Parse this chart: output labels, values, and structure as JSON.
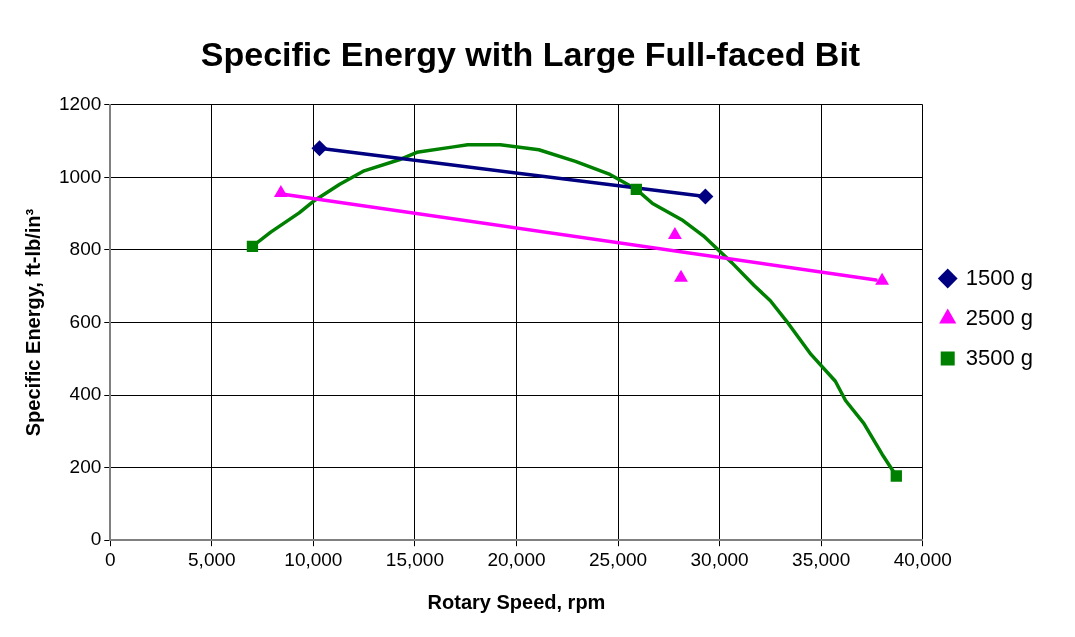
{
  "chart_data": {
    "type": "scatter",
    "title": "Specific Energy with Large Full-faced Bit",
    "xlabel": "Rotary Speed, rpm",
    "ylabel": "Specific Energy, ft-lb/in³",
    "xlim": [
      0,
      40000
    ],
    "xticks": [
      {
        "value": 0,
        "label": "0"
      },
      {
        "value": 5000,
        "label": "5,000"
      },
      {
        "value": 10000,
        "label": "10,000"
      },
      {
        "value": 15000,
        "label": "15,000"
      },
      {
        "value": 20000,
        "label": "20,000"
      },
      {
        "value": 25000,
        "label": "25,000"
      },
      {
        "value": 30000,
        "label": "30,000"
      },
      {
        "value": 35000,
        "label": "35,000"
      },
      {
        "value": 40000,
        "label": "40,000"
      }
    ],
    "ylim": [
      0,
      1200
    ],
    "yticks": [
      0,
      200,
      400,
      600,
      800,
      1000,
      1200
    ],
    "grid": true,
    "legend": "right",
    "series": [
      {
        "name": "1500 g",
        "type": "scatter",
        "marker": "diamond",
        "color": "#000080",
        "x": [
          10300,
          29300
        ],
        "values": [
          1080,
          947
        ]
      },
      {
        "name": "2500 g",
        "type": "scatter",
        "marker": "triangle",
        "color": "#ff00ff",
        "x": [
          8400,
          27800,
          28100,
          38000
        ],
        "values": [
          957,
          841,
          723,
          715
        ]
      },
      {
        "name": "3500 g",
        "type": "scatter",
        "marker": "square",
        "color": "#008000",
        "x": [
          7000,
          25900,
          38700
        ],
        "values": [
          810,
          967,
          177
        ]
      },
      {
        "type": "line",
        "marker": "none",
        "color": "#000080",
        "x": [
          10300,
          29300
        ],
        "values": [
          1080,
          947
        ]
      },
      {
        "type": "line",
        "marker": "none",
        "color": "#ff00ff",
        "x": [
          8600,
          37700
        ],
        "values": [
          953,
          717
        ]
      },
      {
        "type": "line",
        "marker": "none",
        "color": "#008000",
        "x": [
          7000,
          7900,
          9300,
          10000,
          11300,
          12500,
          14300,
          15100,
          16900,
          17600,
          19200,
          21100,
          22900,
          24600,
          25900,
          26700,
          28200,
          29200,
          30600,
          31700,
          32500,
          33400,
          34500,
          35700,
          36200,
          37100,
          38000,
          38700
        ],
        "values": [
          810,
          849,
          902,
          934,
          981,
          1018,
          1050,
          1069,
          1084,
          1090,
          1090,
          1076,
          1044,
          1008,
          967,
          928,
          881,
          839,
          765,
          702,
          660,
          596,
          512,
          438,
          385,
          322,
          237,
          177
        ]
      }
    ]
  }
}
